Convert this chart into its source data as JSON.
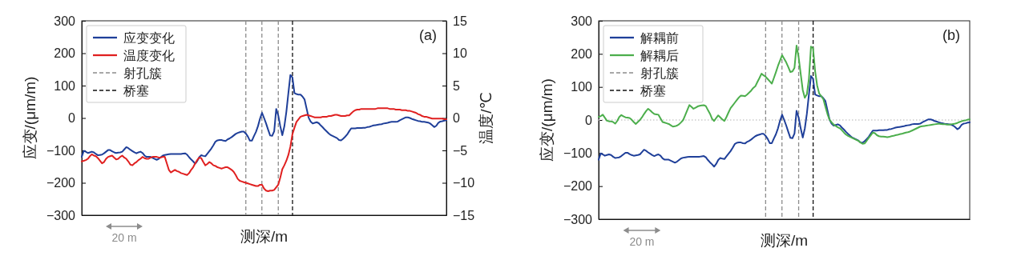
{
  "chart_data": [
    {
      "type": "line",
      "title": "(a)",
      "xlabel": "测深/m",
      "ylabel": "应变/(μm/m)",
      "y2label": "温度/℃",
      "legend": "top left",
      "tick_labels": "y",
      "grid": false,
      "line_style": "solid",
      "marker": "none",
      "categories": [
        null,
        null,
        null,
        null,
        null,
        null,
        null,
        null,
        null,
        null,
        null,
        null,
        null,
        null,
        null,
        null,
        null,
        null,
        null,
        null,
        null,
        null,
        null,
        null,
        null,
        null,
        null,
        null,
        null,
        null,
        null,
        null,
        null,
        null,
        null,
        null,
        null,
        null,
        null,
        null,
        null,
        null,
        null,
        null,
        null,
        null,
        null,
        null,
        null,
        null,
        null,
        null,
        null,
        null,
        null,
        null,
        null,
        null,
        null,
        null,
        null,
        null,
        null,
        null,
        null,
        null,
        null,
        null,
        null,
        null,
        null,
        null,
        null,
        null,
        null,
        null,
        null,
        null,
        null,
        null,
        null,
        null,
        null,
        null,
        null,
        null,
        null,
        null,
        null,
        null,
        null,
        null,
        null,
        null,
        null,
        null,
        null,
        null,
        null,
        null,
        null,
        null,
        null,
        null,
        null,
        null,
        null,
        null,
        null,
        null,
        null,
        null,
        null,
        null,
        null,
        null,
        null,
        null,
        null,
        null,
        null,
        null,
        null,
        null,
        null,
        null,
        null,
        null,
        null,
        null,
        null,
        null,
        null,
        null,
        null,
        null,
        null,
        null,
        null,
        null,
        null,
        null,
        null,
        null,
        null,
        null,
        null,
        null,
        null,
        null,
        null,
        null,
        null,
        null,
        null,
        null,
        null,
        null,
        null,
        null,
        null,
        null,
        null,
        null,
        null,
        null,
        null,
        null,
        null,
        null,
        null,
        null,
        null,
        null,
        null,
        null,
        null,
        null,
        null,
        null,
        null
      ],
      "ylim": [
        -300,
        300
      ],
      "yticks": [
        {
          "value": -300,
          "label": "−300"
        },
        {
          "value": -200,
          "label": "−200"
        },
        {
          "value": -100,
          "label": "−100"
        },
        0,
        100,
        200,
        300
      ],
      "y2lim": [
        -15,
        15
      ],
      "y2ticks": [
        {
          "value": -15,
          "label": "−15"
        },
        {
          "value": -10,
          "label": "−10"
        },
        {
          "value": -5,
          "label": "−5"
        },
        0,
        5,
        10,
        15
      ],
      "annotations": [
        "20 m"
      ],
      "ref_lines": [
        {
          "axis": "x",
          "label": "射孔簇",
          "color": "#8c8c8c",
          "line_style": "dashed"
        },
        {
          "axis": "x",
          "color": "#8c8c8c",
          "line_style": "dashed"
        },
        {
          "axis": "x",
          "color": "#8c8c8c",
          "line_style": "dashed"
        },
        {
          "axis": "x",
          "label": "桥塞",
          "color": "#111111",
          "line_style": "dashed"
        }
      ],
      "series": [
        {
          "name": "应变变化",
          "color": "#1f3f99",
          "values": [
            -120,
            -101,
            -104,
            -108,
            -106,
            -104,
            -106,
            -111,
            -115,
            -114,
            -113,
            -109,
            -104,
            -99,
            -99,
            -103,
            -106,
            -108,
            -107,
            -106,
            -104,
            -97,
            -90,
            -93,
            -98,
            -102,
            -106,
            -109,
            -106,
            -104,
            -108,
            -116,
            -120,
            -120,
            -120,
            -123,
            -126,
            -129,
            -126,
            -121,
            -116,
            -114,
            -113,
            -112,
            -111,
            -111,
            -111,
            -111,
            -111,
            -111,
            -110,
            -109,
            -113,
            -121,
            -128,
            -134,
            -141,
            -133,
            -121,
            -115,
            -117,
            -118,
            -110,
            -102,
            -94,
            -84,
            -73,
            -69,
            -68,
            -68,
            -70,
            -71,
            -66,
            -63,
            -59,
            -54,
            -49,
            -46,
            -44,
            -42,
            -42,
            -48,
            -57,
            -70,
            -70,
            -56,
            -43,
            -25,
            -2,
            16,
            0,
            -17,
            -36,
            -54,
            -55,
            -41,
            28,
            8,
            -25,
            -53,
            -26,
            19,
            77,
            133,
            125,
            77,
            74,
            72,
            72,
            66,
            57,
            29,
            1,
            -11,
            -17,
            -15,
            -13,
            -16,
            -23,
            -29,
            -36,
            -42,
            -48,
            -53,
            -56,
            -59,
            -62,
            -68,
            -69,
            -64,
            -58,
            -51,
            -41,
            -32,
            -32,
            -32,
            -31,
            -31,
            -31,
            -30,
            -30,
            -28,
            -27,
            -25,
            -23,
            -22,
            -21,
            -20,
            -19,
            -17,
            -16,
            -15,
            -13,
            -12,
            -12,
            -12,
            -11,
            -7,
            -4,
            -1,
            2,
            2,
            0,
            -3,
            -5,
            -7,
            -9,
            -10,
            -12,
            -12,
            -13,
            -14,
            -17,
            -22,
            -28,
            -24,
            -15,
            -11,
            -10,
            -8,
            -7
          ]
        },
        {
          "name": "温度变化",
          "color": "#e02020",
          "axis": "y2",
          "values": [
            -6.7,
            -6.6,
            -6.5,
            -6.3,
            -5.9,
            -5.6,
            -5.8,
            -5.9,
            -6.2,
            -6.6,
            -7.0,
            -6.8,
            -6.3,
            -6.0,
            -5.9,
            -5.8,
            -6.1,
            -6.4,
            -6.3,
            -6.0,
            -5.8,
            -6.1,
            -6.3,
            -6.7,
            -7.2,
            -7.3,
            -7.0,
            -6.8,
            -6.5,
            -6.3,
            -6.0,
            -6.2,
            -6.3,
            -6.3,
            -6.1,
            -6.0,
            -6.0,
            -6.0,
            -6.1,
            -6.1,
            -6.0,
            -6.0,
            -7.0,
            -8.0,
            -8.4,
            -8.2,
            -8.0,
            -8.2,
            -8.3,
            -8.5,
            -8.6,
            -8.7,
            -8.8,
            -8.5,
            -8.0,
            -7.6,
            -7.0,
            -6.5,
            -6.1,
            -6.2,
            -6.8,
            -7.3,
            -7.1,
            -6.8,
            -7.0,
            -7.3,
            -7.4,
            -7.6,
            -7.7,
            -7.8,
            -7.7,
            -7.6,
            -7.6,
            -7.8,
            -8.0,
            -8.3,
            -8.8,
            -9.4,
            -9.7,
            -9.8,
            -9.9,
            -10.0,
            -10.1,
            -10.2,
            -10.3,
            -10.4,
            -10.5,
            -10.5,
            -10.3,
            -10.3,
            -10.9,
            -11.2,
            -11.3,
            -11.2,
            -11.2,
            -11.1,
            -10.7,
            -10.3,
            -9.2,
            -7.9,
            -7.3,
            -6.6,
            -5.7,
            -4.4,
            -2.5,
            -1.5,
            -0.6,
            -0.2,
            0.2,
            0.3,
            0.4,
            0.5,
            0.4,
            0.3,
            0.2,
            0.1,
            0.1,
            0.1,
            0.1,
            0.2,
            0.2,
            0.2,
            0.3,
            0.3,
            0.4,
            0.5,
            0.5,
            0.4,
            0.3,
            0.3,
            0.3,
            0.4,
            0.4,
            0.7,
            1.0,
            1.2,
            1.3,
            1.3,
            1.4,
            1.4,
            1.4,
            1.4,
            1.4,
            1.4,
            1.4,
            1.4,
            1.5,
            1.5,
            1.5,
            1.5,
            1.5,
            1.5,
            1.4,
            1.4,
            1.4,
            1.3,
            1.3,
            1.3,
            1.2,
            1.2,
            1.2,
            1.1,
            1.1,
            1.0,
            0.9,
            0.8,
            0.6,
            0.5,
            0.3,
            0.2,
            0.2,
            0.1,
            0.0,
            -0.1,
            -0.1,
            -0.1,
            -0.1,
            -0.1,
            -0.1,
            -0.2,
            -0.2
          ]
        }
      ]
    },
    {
      "type": "line",
      "title": "(b)",
      "xlabel": "测深/m",
      "ylabel": "应变/(μm/m)",
      "legend": "top left",
      "tick_labels": "y",
      "grid": false,
      "line_style": "solid",
      "marker": "none",
      "categories": [
        null,
        null,
        null,
        null,
        null,
        null,
        null,
        null,
        null,
        null,
        null,
        null,
        null,
        null,
        null,
        null,
        null,
        null,
        null,
        null,
        null,
        null,
        null,
        null,
        null,
        null,
        null,
        null,
        null,
        null,
        null,
        null,
        null,
        null,
        null,
        null,
        null,
        null,
        null,
        null,
        null,
        null,
        null,
        null,
        null,
        null,
        null,
        null,
        null,
        null,
        null,
        null,
        null,
        null,
        null,
        null,
        null,
        null,
        null,
        null,
        null,
        null,
        null,
        null,
        null,
        null,
        null,
        null,
        null,
        null,
        null,
        null,
        null,
        null,
        null,
        null,
        null,
        null,
        null,
        null,
        null,
        null,
        null,
        null,
        null,
        null,
        null,
        null,
        null,
        null,
        null,
        null,
        null,
        null,
        null,
        null,
        null,
        null,
        null,
        null,
        null,
        null,
        null,
        null,
        null,
        null,
        null,
        null,
        null,
        null,
        null,
        null,
        null,
        null,
        null,
        null,
        null,
        null,
        null,
        null,
        null,
        null,
        null,
        null,
        null,
        null,
        null,
        null,
        null,
        null,
        null,
        null,
        null,
        null,
        null,
        null,
        null,
        null,
        null,
        null,
        null,
        null,
        null,
        null,
        null,
        null,
        null,
        null,
        null,
        null,
        null,
        null,
        null,
        null,
        null,
        null,
        null,
        null,
        null,
        null,
        null,
        null,
        null,
        null,
        null,
        null,
        null,
        null,
        null,
        null,
        null,
        null,
        null,
        null,
        null,
        null,
        null,
        null,
        null,
        null,
        null
      ],
      "ylim": [
        -300,
        300
      ],
      "yticks": [
        {
          "value": -300,
          "label": "−300"
        },
        {
          "value": -200,
          "label": "−200"
        },
        {
          "value": -100,
          "label": "−100"
        },
        0,
        100,
        200,
        300
      ],
      "annotations": [
        "20 m"
      ],
      "ref_lines": [
        {
          "axis": "y",
          "value": 0,
          "color": "#cccccc",
          "line_style": "dotted"
        },
        {
          "axis": "x",
          "label": "射孔簇",
          "color": "#8c8c8c",
          "line_style": "dashed"
        },
        {
          "axis": "x",
          "color": "#8c8c8c",
          "line_style": "dashed"
        },
        {
          "axis": "x",
          "color": "#8c8c8c",
          "line_style": "dashed"
        },
        {
          "axis": "x",
          "label": "桥塞",
          "color": "#111111",
          "line_style": "dashed"
        }
      ],
      "series": [
        {
          "name": "解耦前",
          "color": "#1f3f99",
          "values": [
            -120,
            -101,
            -104,
            -108,
            -106,
            -104,
            -106,
            -111,
            -115,
            -114,
            -113,
            -109,
            -104,
            -99,
            -99,
            -103,
            -106,
            -108,
            -107,
            -106,
            -104,
            -97,
            -90,
            -93,
            -98,
            -102,
            -106,
            -109,
            -106,
            -104,
            -108,
            -116,
            -120,
            -120,
            -120,
            -123,
            -126,
            -129,
            -126,
            -121,
            -116,
            -114,
            -113,
            -112,
            -111,
            -111,
            -111,
            -111,
            -111,
            -111,
            -110,
            -109,
            -113,
            -121,
            -128,
            -134,
            -141,
            -133,
            -121,
            -115,
            -117,
            -118,
            -110,
            -102,
            -94,
            -84,
            -73,
            -69,
            -68,
            -68,
            -70,
            -71,
            -66,
            -63,
            -59,
            -54,
            -49,
            -46,
            -44,
            -42,
            -42,
            -48,
            -57,
            -70,
            -70,
            -56,
            -43,
            -25,
            -2,
            16,
            0,
            -17,
            -36,
            -54,
            -55,
            -41,
            28,
            8,
            -25,
            -53,
            -26,
            19,
            77,
            133,
            125,
            77,
            74,
            72,
            72,
            66,
            57,
            29,
            1,
            -11,
            -17,
            -15,
            -13,
            -16,
            -23,
            -29,
            -36,
            -42,
            -48,
            -53,
            -56,
            -59,
            -62,
            -68,
            -69,
            -64,
            -58,
            -51,
            -41,
            -32,
            -32,
            -32,
            -31,
            -31,
            -31,
            -30,
            -30,
            -28,
            -27,
            -25,
            -23,
            -22,
            -21,
            -20,
            -19,
            -17,
            -16,
            -15,
            -13,
            -12,
            -12,
            -12,
            -11,
            -7,
            -4,
            -1,
            2,
            2,
            0,
            -3,
            -5,
            -7,
            -9,
            -10,
            -12,
            -12,
            -13,
            -14,
            -17,
            -22,
            -28,
            -24,
            -15,
            -11,
            -10,
            -8,
            -7
          ]
        },
        {
          "name": "解耦后",
          "color": "#4cae4c",
          "values": [
            9,
            12,
            16,
            7,
            -2,
            -4,
            -4,
            -6,
            -11,
            -3,
            9,
            15,
            11,
            8,
            7,
            6,
            1,
            -6,
            -12,
            -6,
            0,
            8,
            18,
            27,
            34,
            29,
            23,
            18,
            17,
            16,
            5,
            -6,
            -8,
            -10,
            -12,
            -16,
            -20,
            -19,
            -17,
            -13,
            -7,
            0,
            15,
            30,
            45,
            40,
            34,
            37,
            41,
            43,
            44,
            45,
            42,
            30,
            19,
            4,
            -3,
            6,
            14,
            8,
            2,
            -3,
            9,
            23,
            36,
            44,
            52,
            60,
            68,
            74,
            73,
            72,
            77,
            83,
            89,
            97,
            102,
            115,
            127,
            140,
            135,
            131,
            124,
            117,
            110,
            127,
            145,
            164,
            180,
            196,
            185,
            174,
            160,
            145,
            147,
            158,
            225,
            190,
            140,
            91,
            67,
            78,
            125,
            222,
            217,
            148,
            104,
            80,
            72,
            63,
            40,
            18,
            1,
            -7,
            -14,
            -18,
            -22,
            -25,
            -31,
            -38,
            -44,
            -48,
            -51,
            -54,
            -57,
            -60,
            -63,
            -68,
            -72,
            -71,
            -63,
            -54,
            -46,
            -38,
            -40,
            -46,
            -49,
            -50,
            -50,
            -51,
            -52,
            -51,
            -49,
            -48,
            -46,
            -45,
            -43,
            -42,
            -40,
            -38,
            -37,
            -35,
            -32,
            -29,
            -26,
            -23,
            -20,
            -19,
            -18,
            -17,
            -16,
            -15,
            -14,
            -13,
            -12,
            -11,
            -12,
            -13,
            -13,
            -14,
            -14,
            -13,
            -12,
            -11,
            -9,
            -6,
            -4,
            -2,
            -1,
            1,
            2
          ]
        }
      ]
    }
  ]
}
